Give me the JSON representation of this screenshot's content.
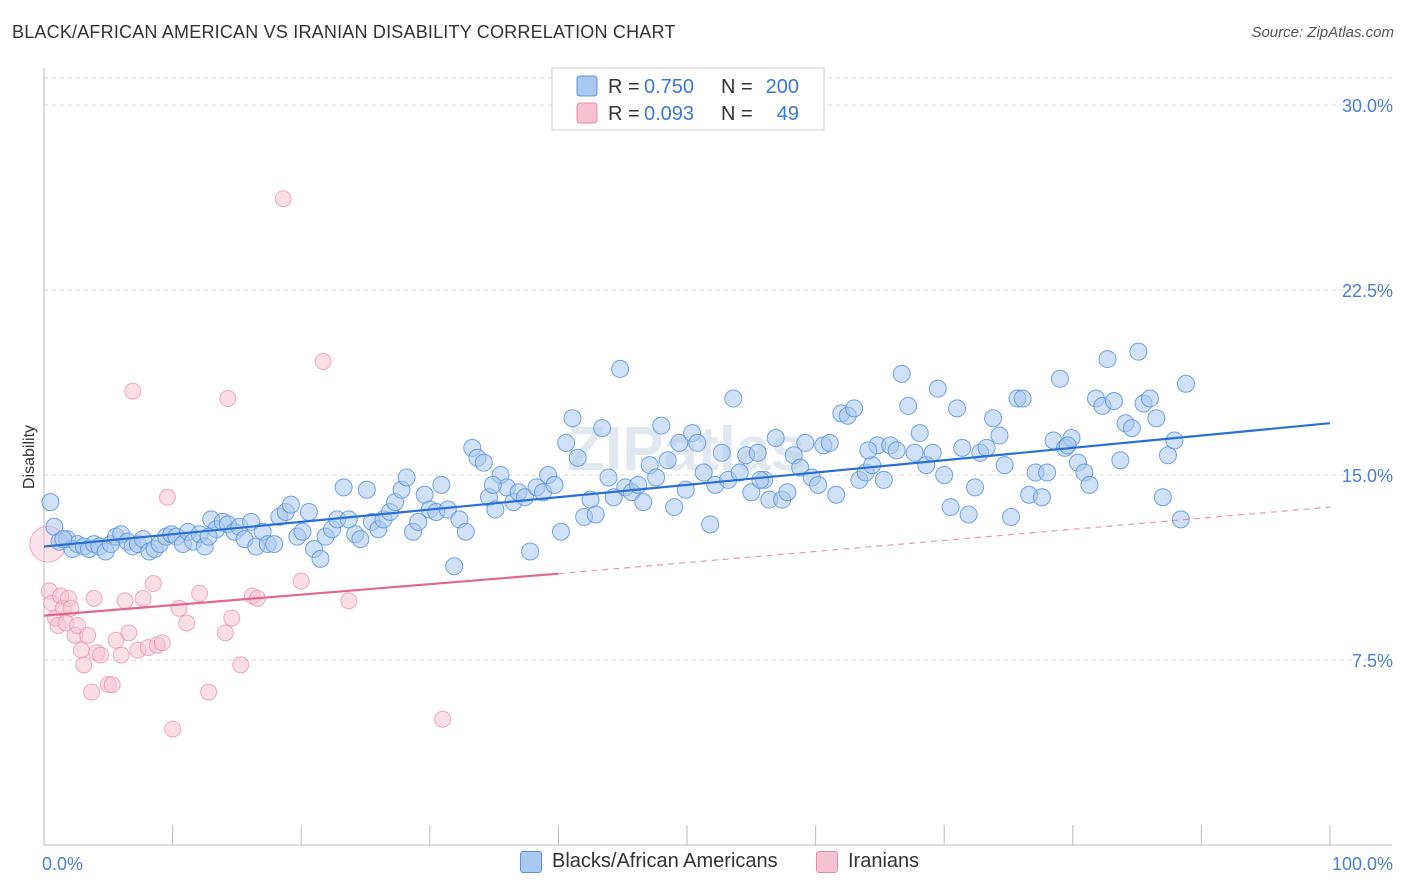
{
  "title": "BLACK/AFRICAN AMERICAN VS IRANIAN DISABILITY CORRELATION CHART",
  "source": "Source: ZipAtlas.com",
  "watermark": "ZIPatlas",
  "colors": {
    "blue_fill": "#a9c8f0",
    "blue_stroke": "#5b93dc",
    "blue_line": "#2a6fd6",
    "pink_fill": "#f6c2d2",
    "pink_stroke": "#e88aaa",
    "pink_line": "#e06890",
    "tick_label": "#4a7fcf",
    "grid": "#d8d8d8"
  },
  "legend": {
    "rows": [
      {
        "r_label": "R =",
        "r_value": "0.750",
        "n_label": "N =",
        "n_value": "200"
      },
      {
        "r_label": "R =",
        "r_value": "0.093",
        "n_label": "N =",
        "n_value": "49"
      }
    ]
  },
  "bottom_legend": [
    "Blacks/African Americans",
    "Iranians"
  ],
  "chart_data": {
    "type": "scatter",
    "title": "BLACK/AFRICAN AMERICAN VS IRANIAN DISABILITY CORRELATION CHART",
    "xlabel": "",
    "ylabel": "Disability",
    "xlim": [
      0,
      100
    ],
    "ylim": [
      0,
      31.5
    ],
    "x_tick_labels": [
      "0.0%",
      "100.0%"
    ],
    "y_ticks": [
      7.5,
      15.0,
      22.5,
      30.0
    ],
    "y_tick_labels": [
      "7.5%",
      "15.0%",
      "22.5%",
      "30.0%"
    ],
    "grid": "horizontal dashed",
    "legend_position": "top-center",
    "series": [
      {
        "name": "Blacks/African Americans",
        "r": 0.75,
        "n": 200,
        "trend": {
          "x": [
            0,
            100
          ],
          "y": [
            12.1,
            17.1
          ]
        },
        "points": [
          [
            0.5,
            13.9
          ],
          [
            0.8,
            12.9
          ],
          [
            1.2,
            12.3
          ],
          [
            1.8,
            12.4
          ],
          [
            2.2,
            12.0
          ],
          [
            2.6,
            12.2
          ],
          [
            3.1,
            12.1
          ],
          [
            3.5,
            12.0
          ],
          [
            3.9,
            12.2
          ],
          [
            4.3,
            12.1
          ],
          [
            4.8,
            11.9
          ],
          [
            5.2,
            12.2
          ],
          [
            5.6,
            12.5
          ],
          [
            6.0,
            12.6
          ],
          [
            6.5,
            12.3
          ],
          [
            6.9,
            12.1
          ],
          [
            7.3,
            12.2
          ],
          [
            7.7,
            12.4
          ],
          [
            8.2,
            11.9
          ],
          [
            8.6,
            12.0
          ],
          [
            9.0,
            12.2
          ],
          [
            9.5,
            12.5
          ],
          [
            9.9,
            12.6
          ],
          [
            10.3,
            12.5
          ],
          [
            10.8,
            12.2
          ],
          [
            11.2,
            12.7
          ],
          [
            11.6,
            12.3
          ],
          [
            12.1,
            12.6
          ],
          [
            12.5,
            12.1
          ],
          [
            13.0,
            13.2
          ],
          [
            13.4,
            12.8
          ],
          [
            13.9,
            13.1
          ],
          [
            14.3,
            13.0
          ],
          [
            14.8,
            12.7
          ],
          [
            15.2,
            12.9
          ],
          [
            15.6,
            12.4
          ],
          [
            16.1,
            13.1
          ],
          [
            16.5,
            12.1
          ],
          [
            17.0,
            12.7
          ],
          [
            17.4,
            12.2
          ],
          [
            17.9,
            12.2
          ],
          [
            18.3,
            13.3
          ],
          [
            18.8,
            13.5
          ],
          [
            19.2,
            13.8
          ],
          [
            19.7,
            12.5
          ],
          [
            20.1,
            12.7
          ],
          [
            20.6,
            13.5
          ],
          [
            21.0,
            12.0
          ],
          [
            21.5,
            11.6
          ],
          [
            21.9,
            12.5
          ],
          [
            22.4,
            12.8
          ],
          [
            22.8,
            13.2
          ],
          [
            23.3,
            14.5
          ],
          [
            23.7,
            13.2
          ],
          [
            24.2,
            12.6
          ],
          [
            24.6,
            12.4
          ],
          [
            25.1,
            14.4
          ],
          [
            25.5,
            13.1
          ],
          [
            26.0,
            12.8
          ],
          [
            26.4,
            13.2
          ],
          [
            26.9,
            13.5
          ],
          [
            27.3,
            13.9
          ],
          [
            27.8,
            14.4
          ],
          [
            28.2,
            14.9
          ],
          [
            28.7,
            12.7
          ],
          [
            29.1,
            13.1
          ],
          [
            29.6,
            14.2
          ],
          [
            30.0,
            13.6
          ],
          [
            30.5,
            13.5
          ],
          [
            30.9,
            14.6
          ],
          [
            31.4,
            13.6
          ],
          [
            31.9,
            11.3
          ],
          [
            32.3,
            13.2
          ],
          [
            32.8,
            12.7
          ],
          [
            33.3,
            16.1
          ],
          [
            33.7,
            15.7
          ],
          [
            34.2,
            15.5
          ],
          [
            34.6,
            14.1
          ],
          [
            35.1,
            13.6
          ],
          [
            35.5,
            15.0
          ],
          [
            36.0,
            14.5
          ],
          [
            36.5,
            13.9
          ],
          [
            36.9,
            14.3
          ],
          [
            37.4,
            14.1
          ],
          [
            37.8,
            11.9
          ],
          [
            38.3,
            14.5
          ],
          [
            38.8,
            14.3
          ],
          [
            39.2,
            15.0
          ],
          [
            39.7,
            14.6
          ],
          [
            40.2,
            12.7
          ],
          [
            40.6,
            16.3
          ],
          [
            41.1,
            17.3
          ],
          [
            41.5,
            15.7
          ],
          [
            42.0,
            13.3
          ],
          [
            42.5,
            14.0
          ],
          [
            42.9,
            13.4
          ],
          [
            43.4,
            16.9
          ],
          [
            43.9,
            14.9
          ],
          [
            44.3,
            14.1
          ],
          [
            44.8,
            19.3
          ],
          [
            45.2,
            14.5
          ],
          [
            45.7,
            14.3
          ],
          [
            46.2,
            14.6
          ],
          [
            46.6,
            13.9
          ],
          [
            47.1,
            15.4
          ],
          [
            47.6,
            14.9
          ],
          [
            48.0,
            17.0
          ],
          [
            48.5,
            15.6
          ],
          [
            49.0,
            13.7
          ],
          [
            49.4,
            16.3
          ],
          [
            49.9,
            14.4
          ],
          [
            50.4,
            16.7
          ],
          [
            50.8,
            16.3
          ],
          [
            51.3,
            15.1
          ],
          [
            51.8,
            13.0
          ],
          [
            52.2,
            14.6
          ],
          [
            52.7,
            15.9
          ],
          [
            53.2,
            14.8
          ],
          [
            53.6,
            18.1
          ],
          [
            54.1,
            15.1
          ],
          [
            54.6,
            15.8
          ],
          [
            55.0,
            14.3
          ],
          [
            55.5,
            15.9
          ],
          [
            56.0,
            14.8
          ],
          [
            56.4,
            14.0
          ],
          [
            56.9,
            16.5
          ],
          [
            57.4,
            14.0
          ],
          [
            57.8,
            14.3
          ],
          [
            58.3,
            15.8
          ],
          [
            58.8,
            15.3
          ],
          [
            59.2,
            16.3
          ],
          [
            59.7,
            14.9
          ],
          [
            60.2,
            14.6
          ],
          [
            60.6,
            16.2
          ],
          [
            61.1,
            16.3
          ],
          [
            61.6,
            14.2
          ],
          [
            62.0,
            17.5
          ],
          [
            62.5,
            17.4
          ],
          [
            63.0,
            17.7
          ],
          [
            63.4,
            14.8
          ],
          [
            63.9,
            15.1
          ],
          [
            64.4,
            15.4
          ],
          [
            64.8,
            16.2
          ],
          [
            65.3,
            14.8
          ],
          [
            65.8,
            16.2
          ],
          [
            66.3,
            16.0
          ],
          [
            66.7,
            19.1
          ],
          [
            67.2,
            17.8
          ],
          [
            67.7,
            15.9
          ],
          [
            68.1,
            16.7
          ],
          [
            68.6,
            15.4
          ],
          [
            69.1,
            15.9
          ],
          [
            69.5,
            18.5
          ],
          [
            70.0,
            15.0
          ],
          [
            70.5,
            13.7
          ],
          [
            71.0,
            17.7
          ],
          [
            71.4,
            16.1
          ],
          [
            71.9,
            13.4
          ],
          [
            72.4,
            14.5
          ],
          [
            72.8,
            15.9
          ],
          [
            73.3,
            16.1
          ],
          [
            73.8,
            17.3
          ],
          [
            74.3,
            16.6
          ],
          [
            74.7,
            15.4
          ],
          [
            75.2,
            13.3
          ],
          [
            75.7,
            18.1
          ],
          [
            76.1,
            18.1
          ],
          [
            76.6,
            14.2
          ],
          [
            77.1,
            15.1
          ],
          [
            77.6,
            14.1
          ],
          [
            78.0,
            15.1
          ],
          [
            78.5,
            16.4
          ],
          [
            79.0,
            18.9
          ],
          [
            79.4,
            16.1
          ],
          [
            79.9,
            16.5
          ],
          [
            80.4,
            15.5
          ],
          [
            80.9,
            15.1
          ],
          [
            81.3,
            14.6
          ],
          [
            81.8,
            18.1
          ],
          [
            82.3,
            17.8
          ],
          [
            82.7,
            19.7
          ],
          [
            83.2,
            18.0
          ],
          [
            83.7,
            15.6
          ],
          [
            84.1,
            17.1
          ],
          [
            84.6,
            16.9
          ],
          [
            85.1,
            20.0
          ],
          [
            85.5,
            17.9
          ],
          [
            86.0,
            18.1
          ],
          [
            86.5,
            17.3
          ],
          [
            87.0,
            14.1
          ],
          [
            87.4,
            15.8
          ],
          [
            87.9,
            16.4
          ],
          [
            88.4,
            13.2
          ],
          [
            88.8,
            18.7
          ],
          [
            1.5,
            12.4
          ],
          [
            12.8,
            12.5
          ],
          [
            34.9,
            14.6
          ],
          [
            55.7,
            14.8
          ],
          [
            64.1,
            16.0
          ],
          [
            79.6,
            16.2
          ]
        ]
      },
      {
        "name": "Iranians",
        "r": 0.093,
        "n": 49,
        "trend": {
          "x": [
            0,
            40
          ],
          "y": [
            9.3,
            11.0
          ]
        },
        "trend_dashed": {
          "x": [
            40,
            100
          ],
          "y": [
            11.0,
            13.7
          ]
        },
        "points": [
          [
            0.3,
            12.2
          ],
          [
            0.4,
            10.3
          ],
          [
            0.6,
            9.8
          ],
          [
            0.9,
            9.2
          ],
          [
            1.1,
            8.9
          ],
          [
            1.3,
            10.1
          ],
          [
            1.5,
            9.6
          ],
          [
            1.7,
            9.0
          ],
          [
            1.9,
            10.0
          ],
          [
            2.1,
            9.6
          ],
          [
            2.4,
            8.5
          ],
          [
            2.6,
            8.9
          ],
          [
            2.9,
            7.9
          ],
          [
            3.1,
            7.3
          ],
          [
            3.4,
            8.5
          ],
          [
            3.7,
            6.2
          ],
          [
            3.9,
            10.0
          ],
          [
            4.1,
            7.8
          ],
          [
            4.4,
            7.7
          ],
          [
            5.0,
            6.5
          ],
          [
            5.3,
            6.5
          ],
          [
            5.6,
            8.3
          ],
          [
            6.0,
            7.7
          ],
          [
            6.3,
            9.9
          ],
          [
            6.6,
            8.6
          ],
          [
            6.9,
            18.4
          ],
          [
            7.3,
            7.9
          ],
          [
            7.7,
            10.0
          ],
          [
            8.1,
            8.0
          ],
          [
            8.5,
            10.6
          ],
          [
            8.8,
            8.1
          ],
          [
            9.2,
            8.2
          ],
          [
            9.6,
            14.1
          ],
          [
            10.0,
            4.7
          ],
          [
            10.5,
            9.6
          ],
          [
            11.1,
            9.0
          ],
          [
            12.1,
            10.2
          ],
          [
            12.8,
            6.2
          ],
          [
            14.1,
            8.6
          ],
          [
            14.3,
            18.1
          ],
          [
            14.6,
            9.2
          ],
          [
            15.3,
            7.3
          ],
          [
            16.2,
            10.1
          ],
          [
            16.6,
            10.0
          ],
          [
            18.6,
            26.2
          ],
          [
            20.0,
            10.7
          ],
          [
            21.7,
            19.6
          ],
          [
            23.7,
            9.9
          ],
          [
            31.0,
            5.1
          ]
        ]
      }
    ]
  }
}
